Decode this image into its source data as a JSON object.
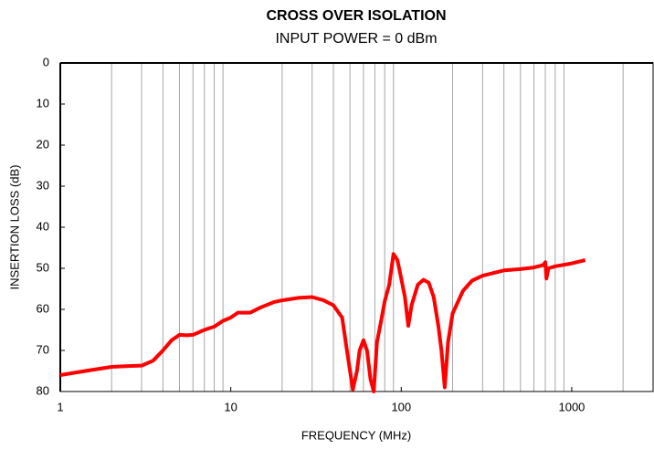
{
  "chart_data": {
    "type": "line",
    "title": "CROSS OVER ISOLATION",
    "subtitle": "INPUT POWER = 0 dBm",
    "x_label": "FREQUENCY (MHz)",
    "y_label": "INSERTION LOSS (dB)",
    "x_log": true,
    "y_inverted": true,
    "xlim": [
      1,
      3000
    ],
    "ylim": [
      0,
      80
    ],
    "xticks": [
      1,
      10,
      100,
      1000
    ],
    "yticks": [
      0,
      10,
      20,
      30,
      40,
      50,
      60,
      70,
      80
    ],
    "x_minor_grid": [
      2,
      3,
      4,
      5,
      6,
      7,
      8,
      9,
      20,
      30,
      40,
      50,
      60,
      70,
      80,
      90,
      200,
      300,
      400,
      500,
      600,
      700,
      800,
      900,
      2000
    ],
    "grid_color": "#a6a6a6",
    "series": [
      {
        "color": "#ff0000",
        "x": [
          1,
          1.5,
          2,
          2.5,
          3,
          3.5,
          4,
          4.5,
          5,
          5.5,
          6,
          7,
          8,
          9,
          10,
          11,
          13,
          15,
          18,
          20,
          25,
          30,
          35,
          40,
          45,
          48,
          52,
          55,
          57,
          60,
          63,
          66,
          69,
          72,
          76,
          80,
          85,
          90,
          95,
          100,
          105,
          110,
          115,
          125,
          135,
          145,
          155,
          165,
          172,
          180,
          188,
          200,
          230,
          260,
          300,
          400,
          500,
          600,
          680,
          700,
          710,
          730,
          800,
          1000,
          1200
        ],
        "values": [
          76,
          74.8,
          74,
          73.8,
          73.7,
          72.5,
          70,
          67.5,
          66.2,
          66.3,
          66.2,
          65,
          64.2,
          62.8,
          62,
          60.8,
          60.8,
          59.5,
          58.2,
          57.8,
          57.2,
          57,
          57.8,
          59,
          62,
          70,
          79.5,
          75,
          70,
          67.5,
          70,
          77,
          80,
          68,
          63,
          58,
          54,
          46.5,
          48,
          52.5,
          57,
          64,
          59,
          54,
          52.8,
          53.5,
          57,
          64,
          70,
          79,
          68,
          61,
          55.5,
          53,
          51.8,
          50.5,
          50.2,
          49.8,
          49.2,
          48.5,
          52.5,
          50,
          49.5,
          48.8,
          48
        ]
      }
    ]
  }
}
